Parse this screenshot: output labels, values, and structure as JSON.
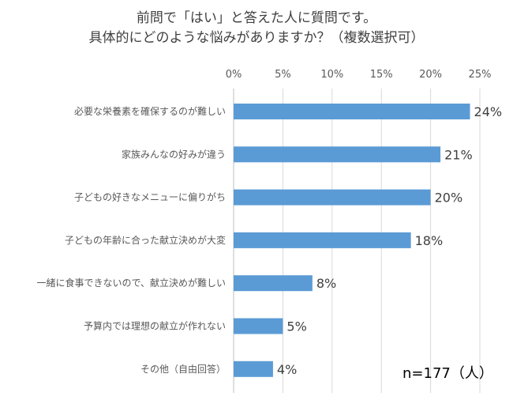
{
  "chart_data": {
    "type": "bar",
    "orientation": "horizontal",
    "title_lines": [
      "前問で「はい」と答えた人に質問です。",
      "具体的にどのような悩みがありますか？（複数選択可）"
    ],
    "categories": [
      "必要な栄養素を確保するのが難しい",
      "家族みんなの好みが違う",
      "子どもの好きなメニューに偏りがち",
      "子どもの年齢に合った献立決めが大変",
      "一緒に食事できないので、献立決めが難しい",
      "予算内では理想の献立が作れない",
      "その他（自由回答）"
    ],
    "values": [
      24,
      21,
      20,
      18,
      8,
      5,
      4
    ],
    "value_labels": [
      "24%",
      "21%",
      "20%",
      "18%",
      "8%",
      "5%",
      "4%"
    ],
    "xlim": [
      0,
      25
    ],
    "x_ticks": [
      0,
      5,
      10,
      15,
      20,
      25
    ],
    "x_tick_labels": [
      "0%",
      "5%",
      "10%",
      "15%",
      "20%",
      "25%"
    ],
    "axis_position": "top",
    "grid": true,
    "bar_color": "#5b9bd5",
    "note": "n=177（人）"
  }
}
